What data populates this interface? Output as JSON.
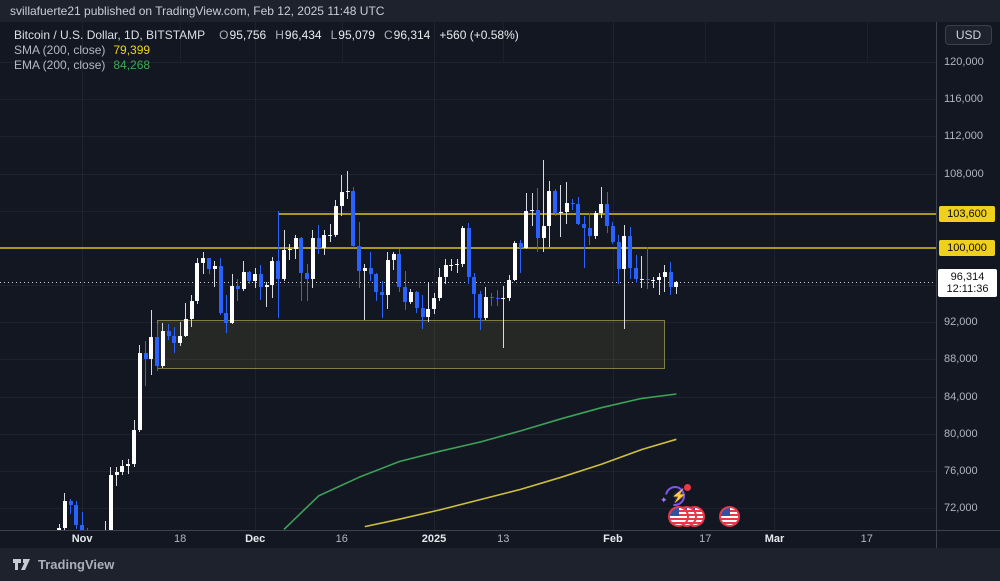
{
  "header": {
    "published_line": "svillafuerte21 published on TradingView.com, Feb 12, 2025 11:48 UTC"
  },
  "legend": {
    "title": "Bitcoin / U.S. Dollar, 1D, BITSTAMP",
    "ohlc": {
      "o_label": "O",
      "o": "95,756",
      "h_label": "H",
      "h": "96,434",
      "l_label": "L",
      "l": "95,079",
      "c_label": "C",
      "c": "96,314",
      "change": "+560 (+0.58%)"
    },
    "sma": {
      "label": "SMA (200, close)",
      "value": "79,399"
    },
    "ema": {
      "label": "EMA (200, close)",
      "value": "84,268"
    }
  },
  "axis": {
    "currency_button": "USD"
  },
  "footer": {
    "brand": "TradingView"
  },
  "stickers": [
    {
      "name": "lightning-refresh-sticker"
    },
    {
      "name": "us-flag-coin-stack-sticker"
    },
    {
      "name": "us-flag-coin-sticker"
    }
  ],
  "colors": {
    "background": "#131722",
    "toolbar": "#1d222d",
    "candle_up": "#ffffff",
    "candle_up_wick": "#d7dae0",
    "candle_down": "#2962ff",
    "level_line": "#a8981f",
    "level_label_bg": "#efd11c",
    "zone_fill": "rgba(146,138,70,0.15)",
    "zone_border": "rgba(205,193,95,0.55)",
    "sma_line": "#cdbf3e",
    "ema_line": "#3da158",
    "axis_text": "#b2b5be",
    "last_price_line": "#eceff5"
  },
  "chart_data": {
    "type": "candlestick",
    "title": "Bitcoin / U.S. Dollar",
    "interval": "1D",
    "exchange": "BITSTAMP",
    "start_date": "2024-10-28",
    "end_date": "2025-02-12",
    "y_axis": {
      "min": 72000,
      "max": 120000,
      "step": 4000,
      "ticks": [
        120000,
        116000,
        112000,
        108000,
        104000,
        100000,
        96000,
        92000,
        88000,
        84000,
        80000,
        76000,
        72000
      ],
      "hidden_tick_labels": [
        100000,
        96000
      ]
    },
    "x_axis": {
      "labels": [
        {
          "text": "Nov",
          "index": 4,
          "major": true
        },
        {
          "text": "18",
          "index": 21,
          "major": false
        },
        {
          "text": "Dec",
          "index": 34,
          "major": true
        },
        {
          "text": "16",
          "index": 49,
          "major": false
        },
        {
          "text": "2025",
          "index": 65,
          "major": true
        },
        {
          "text": "13",
          "index": 77,
          "major": false
        },
        {
          "text": "Feb",
          "index": 96,
          "major": true
        },
        {
          "text": "17",
          "index": 112,
          "major": false
        },
        {
          "text": "Mar",
          "index": 124,
          "major": true
        },
        {
          "text": "17",
          "index": 140,
          "major": false
        }
      ]
    },
    "last": {
      "price": 96314,
      "text": "96,314",
      "countdown": "12:11:36"
    },
    "levels": [
      {
        "price": 103600,
        "label": "103,600",
        "from_index": 38
      },
      {
        "price": 100000,
        "label": "100,000",
        "from_index": null
      }
    ],
    "zone": {
      "price_top": 92200,
      "price_bottom": 86950,
      "from_index": 17,
      "to_index": 105
    },
    "indicators": [
      {
        "name": "EMA 200",
        "value": 84268,
        "points": [
          [
            39,
            69700
          ],
          [
            45,
            73300
          ],
          [
            52,
            75300
          ],
          [
            59,
            77000
          ],
          [
            66,
            78100
          ],
          [
            73,
            79100
          ],
          [
            80,
            80300
          ],
          [
            87,
            81600
          ],
          [
            94,
            82800
          ],
          [
            101,
            83800
          ],
          [
            107,
            84268
          ]
        ]
      },
      {
        "name": "SMA 200",
        "value": 79399,
        "points": [
          [
            53,
            70000
          ],
          [
            59,
            70800
          ],
          [
            66,
            71800
          ],
          [
            73,
            72900
          ],
          [
            80,
            74000
          ],
          [
            87,
            75300
          ],
          [
            94,
            76700
          ],
          [
            101,
            78300
          ],
          [
            107,
            79399
          ]
        ]
      }
    ],
    "candles": [
      [
        67900,
        70250,
        67600,
        69900
      ],
      [
        69900,
        73600,
        69300,
        72700
      ],
      [
        72700,
        72950,
        71350,
        72350
      ],
      [
        72350,
        72700,
        69700,
        70200
      ],
      [
        70200,
        71600,
        68800,
        69500
      ],
      [
        69500,
        69900,
        68700,
        69350
      ],
      [
        69350,
        69400,
        67900,
        68750
      ],
      [
        68750,
        69500,
        66800,
        67900
      ],
      [
        67900,
        70600,
        67500,
        69400
      ],
      [
        69400,
        76450,
        69000,
        75600
      ],
      [
        75600,
        76400,
        74400,
        75900
      ],
      [
        75900,
        77200,
        75550,
        76500
      ],
      [
        76500,
        77300,
        75700,
        76700
      ],
      [
        76700,
        81500,
        76450,
        80400
      ],
      [
        80400,
        89500,
        80150,
        88700
      ],
      [
        88700,
        89950,
        85100,
        88000
      ],
      [
        88000,
        93300,
        86300,
        90400
      ],
      [
        90400,
        91800,
        86700,
        87300
      ],
      [
        87300,
        91900,
        87100,
        91000
      ],
      [
        91000,
        91800,
        90100,
        90550
      ],
      [
        90550,
        91450,
        88700,
        89800
      ],
      [
        89800,
        92000,
        89400,
        90500
      ],
      [
        90500,
        94100,
        90350,
        92300
      ],
      [
        92300,
        94900,
        91500,
        94300
      ],
      [
        94300,
        98900,
        94000,
        98400
      ],
      [
        98400,
        99600,
        97200,
        98900
      ],
      [
        98900,
        98950,
        97150,
        97700
      ],
      [
        97700,
        98600,
        95750,
        98000
      ],
      [
        98000,
        98900,
        92800,
        93000
      ],
      [
        93000,
        94900,
        90800,
        91900
      ],
      [
        91900,
        97200,
        91800,
        95900
      ],
      [
        95900,
        96600,
        94300,
        95600
      ],
      [
        95600,
        98600,
        95400,
        97400
      ],
      [
        97400,
        97500,
        96100,
        96400
      ],
      [
        96400,
        97800,
        95700,
        97200
      ],
      [
        97200,
        98100,
        94400,
        95800
      ],
      [
        95800,
        96300,
        93600,
        96000
      ],
      [
        96000,
        99000,
        94600,
        98600
      ],
      [
        98600,
        104000,
        92500,
        96600
      ],
      [
        96600,
        101900,
        96400,
        99800
      ],
      [
        99800,
        100400,
        98700,
        99900
      ],
      [
        99900,
        101400,
        98800,
        101100
      ],
      [
        101100,
        101200,
        94300,
        97300
      ],
      [
        97300,
        98300,
        94300,
        96600
      ],
      [
        96600,
        101900,
        95700,
        101100
      ],
      [
        101100,
        102500,
        99300,
        100000
      ],
      [
        100000,
        101900,
        99200,
        101400
      ],
      [
        101400,
        102600,
        100600,
        101400
      ],
      [
        101400,
        105100,
        101200,
        104500
      ],
      [
        104500,
        107800,
        103400,
        106000
      ],
      [
        106000,
        108300,
        105300,
        106100
      ],
      [
        106100,
        106500,
        100000,
        100200
      ],
      [
        100200,
        102800,
        95700,
        97500
      ],
      [
        97500,
        98300,
        92200,
        97800
      ],
      [
        97800,
        99500,
        96400,
        97200
      ],
      [
        97200,
        97300,
        94300,
        95200
      ],
      [
        95200,
        96400,
        92500,
        94900
      ],
      [
        94900,
        99500,
        93400,
        98700
      ],
      [
        98700,
        99600,
        97600,
        99300
      ],
      [
        99300,
        99900,
        95200,
        95800
      ],
      [
        95800,
        97500,
        93300,
        94200
      ],
      [
        94200,
        95600,
        93900,
        95300
      ],
      [
        95300,
        95350,
        93000,
        93500
      ],
      [
        93500,
        94900,
        91300,
        92600
      ],
      [
        92600,
        96200,
        92000,
        93400
      ],
      [
        93400,
        95100,
        92900,
        94600
      ],
      [
        94600,
        97800,
        94300,
        96900
      ],
      [
        96900,
        98800,
        96100,
        98100
      ],
      [
        98100,
        98800,
        97500,
        98200
      ],
      [
        98200,
        98800,
        97300,
        98300
      ],
      [
        98300,
        102300,
        97900,
        102100
      ],
      [
        102100,
        102700,
        96100,
        96900
      ],
      [
        96900,
        97300,
        92500,
        95000
      ],
      [
        95000,
        95400,
        91200,
        92500
      ],
      [
        92500,
        95800,
        92200,
        94700
      ],
      [
        94700,
        95100,
        93700,
        94600
      ],
      [
        94600,
        95500,
        93700,
        94500
      ],
      [
        94500,
        95900,
        89200,
        94600
      ],
      [
        94600,
        97100,
        94300,
        96500
      ],
      [
        96500,
        100700,
        96400,
        100500
      ],
      [
        100500,
        100800,
        97300,
        100000
      ],
      [
        100000,
        105900,
        99900,
        104000
      ],
      [
        104000,
        105900,
        102300,
        104100
      ],
      [
        104100,
        106400,
        99500,
        101100
      ],
      [
        101100,
        109400,
        99500,
        102300
      ],
      [
        102300,
        107200,
        100100,
        106100
      ],
      [
        106100,
        106300,
        103400,
        103700
      ],
      [
        103700,
        106800,
        101200,
        103900
      ],
      [
        103900,
        107100,
        102600,
        104800
      ],
      [
        104800,
        105300,
        104100,
        104700
      ],
      [
        104700,
        105500,
        102500,
        102600
      ],
      [
        102600,
        103400,
        97800,
        102100
      ],
      [
        102100,
        103700,
        100300,
        101300
      ],
      [
        101300,
        104000,
        101000,
        103700
      ],
      [
        103700,
        106500,
        103200,
        104700
      ],
      [
        104700,
        106000,
        101600,
        102400
      ],
      [
        102400,
        102800,
        100400,
        100600
      ],
      [
        100600,
        101400,
        96100,
        97700
      ],
      [
        97700,
        102500,
        91300,
        101300
      ],
      [
        101300,
        102200,
        96600,
        97800
      ],
      [
        97800,
        99200,
        96200,
        96600
      ],
      [
        96600,
        99100,
        95700,
        96600
      ],
      [
        96600,
        100100,
        95600,
        96500
      ],
      [
        96500,
        96900,
        95700,
        96500
      ],
      [
        96500,
        97300,
        94900,
        96900
      ],
      [
        96900,
        98100,
        95300,
        97400
      ],
      [
        97400,
        98500,
        94900,
        95800
      ],
      [
        95756,
        96434,
        95079,
        96314
      ]
    ]
  }
}
